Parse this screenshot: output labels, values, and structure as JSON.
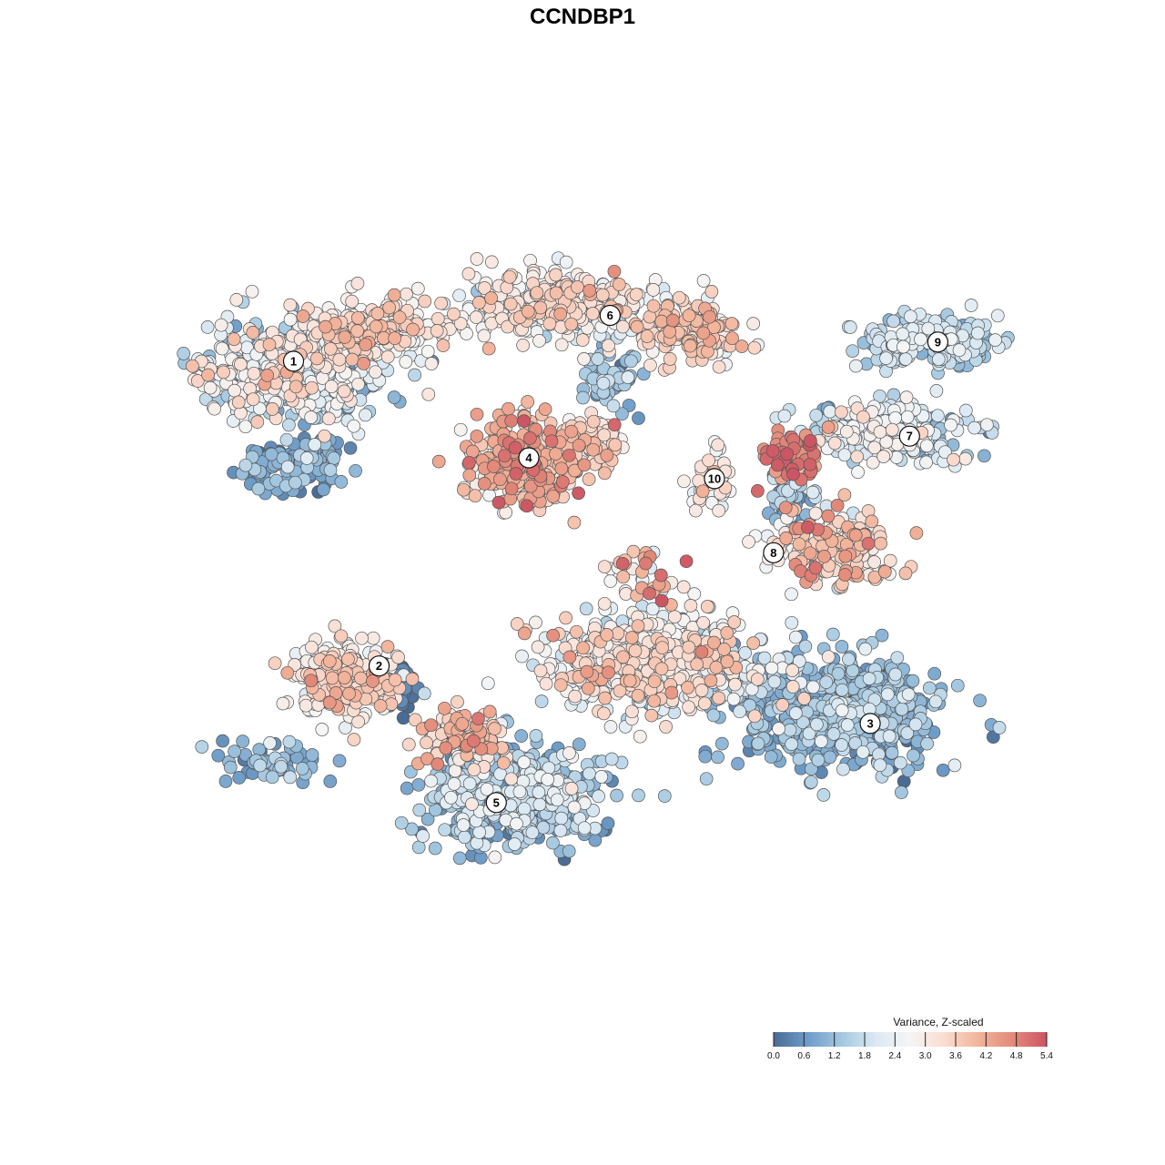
{
  "chart_data": {
    "type": "scatter",
    "title": "CCNDBP1",
    "xlabel": "",
    "ylabel": "",
    "x_range": [
      0,
      100
    ],
    "y_range": [
      0,
      100
    ],
    "grid": false,
    "axes_visible": false,
    "legend": {
      "title": "Variance, Z-scaled",
      "position": "bottom-right",
      "range": [
        0.0,
        5.4
      ],
      "ticks": [
        "0.0",
        "0.6",
        "1.2",
        "1.8",
        "2.4",
        "3.0",
        "3.6",
        "4.2",
        "4.8",
        "5.4"
      ],
      "colormap": [
        "#4a6b94",
        "#6e9cc8",
        "#a4c8e0",
        "#dbe9f3",
        "#f5f5f5",
        "#fadcd0",
        "#f2b49b",
        "#e38a7a",
        "#cc5563"
      ]
    },
    "clusters": [
      {
        "label": "1",
        "x": 14.1,
        "y": 76.3,
        "mean_value": 2.3
      },
      {
        "label": "2",
        "x": 24.1,
        "y": 39.7,
        "mean_value": 3.0
      },
      {
        "label": "3",
        "x": 81.5,
        "y": 32.8,
        "mean_value": 1.0
      },
      {
        "label": "4",
        "x": 41.6,
        "y": 64.7,
        "mean_value": 3.8
      },
      {
        "label": "5",
        "x": 37.8,
        "y": 23.3,
        "mean_value": 1.4
      },
      {
        "label": "6",
        "x": 51.1,
        "y": 81.8,
        "mean_value": 2.9
      },
      {
        "label": "7",
        "x": 86.1,
        "y": 67.3,
        "mean_value": 2.2
      },
      {
        "label": "8",
        "x": 70.2,
        "y": 53.3,
        "mean_value": 3.4
      },
      {
        "label": "9",
        "x": 89.4,
        "y": 78.6,
        "mean_value": 1.8
      },
      {
        "label": "10",
        "x": 63.3,
        "y": 62.2,
        "mean_value": 3.0
      }
    ],
    "point_groups": [
      {
        "cluster": "1",
        "cx": 14,
        "cy": 75,
        "sx": 9,
        "sy": 5,
        "n": 520,
        "mean": 2.2,
        "sd": 0.8
      },
      {
        "cluster": "1",
        "cx": 14,
        "cy": 64,
        "sx": 5,
        "sy": 3,
        "n": 130,
        "mean": 0.8,
        "sd": 0.5
      },
      {
        "cluster": "1",
        "cx": 23,
        "cy": 80,
        "sx": 7,
        "sy": 3,
        "n": 260,
        "mean": 3.1,
        "sd": 0.5
      },
      {
        "cluster": "6",
        "cx": 45,
        "cy": 83,
        "sx": 9,
        "sy": 3.5,
        "n": 380,
        "mean": 2.8,
        "sd": 0.6
      },
      {
        "cluster": "6",
        "cx": 60,
        "cy": 80,
        "sx": 5,
        "sy": 3,
        "n": 150,
        "mean": 3.4,
        "sd": 0.5
      },
      {
        "cluster": "6",
        "cx": 51,
        "cy": 74,
        "sx": 3,
        "sy": 3,
        "n": 60,
        "mean": 1.2,
        "sd": 0.5
      },
      {
        "cluster": "4",
        "cx": 41,
        "cy": 64,
        "sx": 5,
        "sy": 4.5,
        "n": 340,
        "mean": 3.8,
        "sd": 0.6
      },
      {
        "cluster": "4",
        "cx": 49,
        "cy": 67,
        "sx": 3,
        "sy": 2,
        "n": 80,
        "mean": 3.3,
        "sd": 0.5
      },
      {
        "cluster": "9",
        "cx": 88,
        "cy": 78.5,
        "sx": 7,
        "sy": 2.5,
        "n": 200,
        "mean": 1.7,
        "sd": 0.4
      },
      {
        "cluster": "7",
        "cx": 84,
        "cy": 68,
        "sx": 8,
        "sy": 3,
        "n": 240,
        "mean": 2.0,
        "sd": 0.7
      },
      {
        "cluster": "7",
        "cx": 72,
        "cy": 65,
        "sx": 3,
        "sy": 2.5,
        "n": 60,
        "mean": 4.8,
        "sd": 0.4
      },
      {
        "cluster": "10",
        "cx": 63,
        "cy": 62,
        "sx": 2,
        "sy": 3,
        "n": 50,
        "mean": 3.0,
        "sd": 0.4
      },
      {
        "cluster": "8",
        "cx": 77,
        "cy": 54,
        "sx": 6,
        "sy": 3.5,
        "n": 220,
        "mean": 3.4,
        "sd": 0.7
      },
      {
        "cluster": "8",
        "cx": 72,
        "cy": 60,
        "sx": 2,
        "sy": 3,
        "n": 60,
        "mean": 1.2,
        "sd": 0.5
      },
      {
        "cluster": "2",
        "cx": 20,
        "cy": 38,
        "sx": 5,
        "sy": 3.5,
        "n": 240,
        "mean": 3.2,
        "sd": 0.6
      },
      {
        "cluster": "2",
        "cx": 27,
        "cy": 37,
        "sx": 1.2,
        "sy": 2,
        "n": 45,
        "mean": 0.1,
        "sd": 0.2
      },
      {
        "cluster": "3",
        "cx": 78,
        "cy": 34,
        "sx": 10,
        "sy": 5.5,
        "n": 620,
        "mean": 1.0,
        "sd": 0.5
      },
      {
        "cluster": "3",
        "cx": 56,
        "cy": 40,
        "sx": 12,
        "sy": 5,
        "n": 520,
        "mean": 2.6,
        "sd": 0.8
      },
      {
        "cluster": "5",
        "cx": 40,
        "cy": 24,
        "sx": 8,
        "sy": 5,
        "n": 560,
        "mean": 1.3,
        "sd": 0.6
      },
      {
        "cluster": "5",
        "cx": 34,
        "cy": 31,
        "sx": 4,
        "sy": 2.5,
        "n": 110,
        "mean": 3.6,
        "sd": 0.6
      },
      {
        "cluster": "5",
        "cx": 12,
        "cy": 28,
        "sx": 5,
        "sy": 2,
        "n": 60,
        "mean": 1.0,
        "sd": 0.4
      },
      {
        "cluster": "-",
        "cx": 55,
        "cy": 50,
        "sx": 4,
        "sy": 3,
        "n": 40,
        "mean": 3.8,
        "sd": 1.0
      }
    ]
  }
}
